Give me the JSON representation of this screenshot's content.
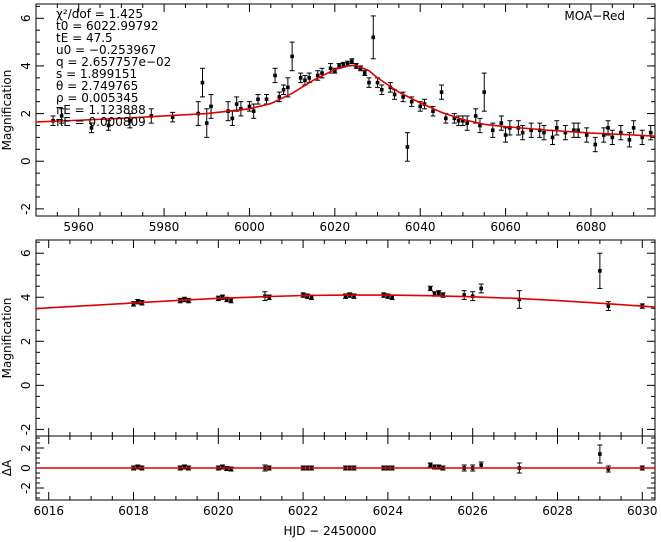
{
  "colors": {
    "model": "#e00000",
    "data": "#000000",
    "background": "#ffffff"
  },
  "xlabel_bottom": "HJD − 2450000",
  "chart_data": [
    {
      "type": "scatter",
      "name": "top-light-curve",
      "dataset_label": "MOA−Red",
      "ylabel": "Magnification",
      "xlim": [
        5950,
        6095
      ],
      "ylim": [
        -2.3,
        6.6
      ],
      "xticks": [
        5960,
        5980,
        6000,
        6020,
        6040,
        6060,
        6080
      ],
      "yticks": [
        -2,
        0,
        2,
        4,
        6
      ],
      "params_text": [
        "χ²/dof = 1.425",
        "t0   = 6022.99792",
        "tE   = 47.5",
        "u0   = −0.253967",
        "q    = 2.657757e−02",
        "s    = 1.899151",
        "θ    = 2.749765",
        "ρ    = 0.005345",
        "πE   = 1.123888",
        "πE   = 0.000809"
      ],
      "model": {
        "x": [
          5950,
          5960,
          5970,
          5980,
          5990,
          6000,
          6005,
          6010,
          6015,
          6020,
          6023,
          6025,
          6028,
          6030,
          6035,
          6040,
          6045,
          6050,
          6055,
          6060,
          6070,
          6080,
          6090,
          6095
        ],
        "y": [
          1.65,
          1.72,
          1.8,
          1.9,
          2.0,
          2.2,
          2.42,
          2.85,
          3.4,
          3.85,
          4.0,
          4.02,
          3.8,
          3.5,
          2.9,
          2.45,
          2.05,
          1.75,
          1.55,
          1.45,
          1.3,
          1.18,
          1.1,
          1.05
        ]
      },
      "points": {
        "x": [
          5954,
          5956,
          5963,
          5967,
          5972,
          5977,
          5982,
          5988,
          5989,
          5990,
          5991,
          5995,
          5996,
          5997,
          5998,
          6000,
          6001,
          6002,
          6004,
          6006,
          6007,
          6008,
          6009,
          6010,
          6012,
          6013,
          6014,
          6016,
          6017,
          6019,
          6020,
          6021,
          6022,
          6023,
          6024,
          6025,
          6026,
          6027,
          6028,
          6029,
          6030,
          6031,
          6033,
          6034,
          6036,
          6037,
          6038,
          6040,
          6041,
          6043,
          6045,
          6046,
          6048,
          6049,
          6050,
          6051,
          6053,
          6054,
          6055,
          6057,
          6059,
          6060,
          6061,
          6063,
          6064,
          6066,
          6068,
          6069,
          6071,
          6072,
          6074,
          6076,
          6077,
          6079,
          6081,
          6083,
          6084,
          6085,
          6087,
          6089,
          6090,
          6092,
          6094
        ],
        "y": [
          1.7,
          1.9,
          1.4,
          1.5,
          1.7,
          1.9,
          1.85,
          2.0,
          3.3,
          1.6,
          2.3,
          2.1,
          1.8,
          2.4,
          2.2,
          2.3,
          2.1,
          2.6,
          2.6,
          3.6,
          2.7,
          3.0,
          3.1,
          4.4,
          3.5,
          3.4,
          3.5,
          3.6,
          3.7,
          3.9,
          3.8,
          4.0,
          4.05,
          4.1,
          4.2,
          4.0,
          3.9,
          3.7,
          3.3,
          5.2,
          3.3,
          3.0,
          3.1,
          2.8,
          2.7,
          0.6,
          2.5,
          2.3,
          2.4,
          2.1,
          2.9,
          1.8,
          1.8,
          1.7,
          1.7,
          1.6,
          1.9,
          1.5,
          2.9,
          1.3,
          1.6,
          1.1,
          1.4,
          1.4,
          1.2,
          1.3,
          1.3,
          1.2,
          1.0,
          1.4,
          1.2,
          1.3,
          1.3,
          1.1,
          0.7,
          1.1,
          1.4,
          1.0,
          1.2,
          0.9,
          1.4,
          1.0,
          1.2
        ],
        "err": [
          0.2,
          0.3,
          0.2,
          0.2,
          0.3,
          0.3,
          0.2,
          0.5,
          0.6,
          0.6,
          0.5,
          0.4,
          0.3,
          0.3,
          0.3,
          0.2,
          0.3,
          0.2,
          0.2,
          0.3,
          0.2,
          0.2,
          0.4,
          0.6,
          0.2,
          0.2,
          0.2,
          0.2,
          0.2,
          0.2,
          0.1,
          0.1,
          0.1,
          0.1,
          0.1,
          0.1,
          0.1,
          0.1,
          0.2,
          0.9,
          0.2,
          0.2,
          0.2,
          0.2,
          0.2,
          0.6,
          0.2,
          0.2,
          0.2,
          0.2,
          0.3,
          0.2,
          0.2,
          0.2,
          0.2,
          0.3,
          0.3,
          0.3,
          0.8,
          0.3,
          0.3,
          0.3,
          0.3,
          0.3,
          0.3,
          0.3,
          0.3,
          0.3,
          0.3,
          0.3,
          0.3,
          0.3,
          0.3,
          0.3,
          0.3,
          0.3,
          0.3,
          0.3,
          0.3,
          0.3,
          0.3,
          0.3,
          0.3
        ]
      }
    },
    {
      "type": "scatter",
      "name": "zoom-light-curve",
      "ylabel": "Magnification",
      "xlim": [
        6015.7,
        6030.3
      ],
      "ylim": [
        -2.3,
        6.6
      ],
      "xticks": [
        6016,
        6018,
        6020,
        6022,
        6024,
        6026,
        6028,
        6030
      ],
      "yticks": [
        -2,
        0,
        2,
        4,
        6
      ],
      "model": {
        "x": [
          6015.7,
          6016,
          6017,
          6018,
          6019,
          6020,
          6021,
          6022,
          6023,
          6024,
          6025,
          6026,
          6027,
          6028,
          6029,
          6030,
          6030.3
        ],
        "y": [
          3.48,
          3.52,
          3.63,
          3.74,
          3.85,
          3.95,
          4.02,
          4.08,
          4.1,
          4.1,
          4.07,
          4.02,
          3.95,
          3.85,
          3.73,
          3.6,
          3.55
        ]
      },
      "points": {
        "x": [
          6018.0,
          6018.1,
          6018.2,
          6019.1,
          6019.2,
          6019.3,
          6020.0,
          6020.1,
          6020.2,
          6020.3,
          6021.1,
          6021.2,
          6022.0,
          6022.1,
          6022.2,
          6023.0,
          6023.1,
          6023.2,
          6023.9,
          6024.0,
          6024.1,
          6025.0,
          6025.1,
          6025.2,
          6025.3,
          6025.8,
          6026.0,
          6026.2,
          6027.1,
          6029.0,
          6029.2,
          6030.0
        ],
        "y": [
          3.7,
          3.8,
          3.75,
          3.85,
          3.9,
          3.85,
          3.95,
          4.0,
          3.9,
          3.85,
          4.05,
          4.0,
          4.1,
          4.05,
          4.0,
          4.05,
          4.1,
          4.05,
          4.1,
          4.05,
          4.0,
          4.4,
          4.15,
          4.2,
          4.1,
          4.1,
          4.05,
          4.4,
          3.9,
          5.2,
          3.6,
          3.6
        ],
        "err": [
          0.1,
          0.1,
          0.1,
          0.1,
          0.1,
          0.1,
          0.1,
          0.1,
          0.1,
          0.1,
          0.2,
          0.1,
          0.1,
          0.1,
          0.1,
          0.1,
          0.1,
          0.1,
          0.1,
          0.1,
          0.1,
          0.1,
          0.1,
          0.1,
          0.1,
          0.2,
          0.2,
          0.2,
          0.4,
          0.8,
          0.2,
          0.1
        ]
      }
    },
    {
      "type": "scatter",
      "name": "residuals",
      "ylabel": "ΔA",
      "xlim": [
        6015.7,
        6030.3
      ],
      "ylim": [
        -3.2,
        3.2
      ],
      "xticks": [
        6016,
        6018,
        6020,
        6022,
        6024,
        6026,
        6028,
        6030
      ],
      "yticks": [
        -2,
        0,
        2
      ],
      "model": {
        "x": [
          6015.7,
          6030.3
        ],
        "y": [
          0,
          0
        ]
      },
      "points": {
        "x": [
          6018.0,
          6018.1,
          6018.2,
          6019.1,
          6019.2,
          6019.3,
          6020.0,
          6020.1,
          6020.2,
          6020.3,
          6021.1,
          6021.2,
          6022.0,
          6022.1,
          6022.2,
          6023.0,
          6023.1,
          6023.2,
          6023.9,
          6024.0,
          6024.1,
          6025.0,
          6025.1,
          6025.2,
          6025.3,
          6025.8,
          6026.0,
          6026.2,
          6027.1,
          6029.0,
          6029.2,
          6030.0
        ],
        "y": [
          0,
          0.1,
          0,
          0,
          0.1,
          0,
          0,
          0.1,
          -0.05,
          -0.1,
          0,
          0,
          0,
          0,
          0,
          0,
          0,
          0,
          0,
          0,
          0,
          0.3,
          0.1,
          0.1,
          0,
          0,
          0,
          0.3,
          0,
          1.4,
          -0.1,
          0
        ],
        "err": [
          0.2,
          0.2,
          0.2,
          0.2,
          0.2,
          0.2,
          0.2,
          0.2,
          0.2,
          0.2,
          0.3,
          0.2,
          0.2,
          0.2,
          0.2,
          0.2,
          0.2,
          0.2,
          0.2,
          0.2,
          0.2,
          0.2,
          0.2,
          0.2,
          0.2,
          0.3,
          0.3,
          0.3,
          0.5,
          0.9,
          0.3,
          0.2
        ]
      }
    }
  ]
}
